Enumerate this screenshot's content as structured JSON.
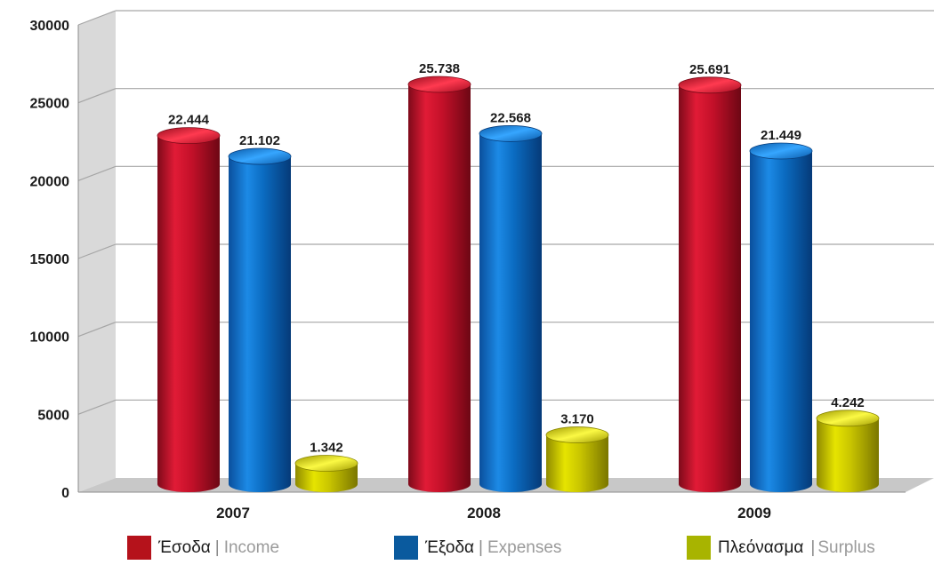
{
  "chart_data": {
    "type": "bar",
    "style": "3d-cylinder",
    "categories": [
      "2007",
      "2008",
      "2009"
    ],
    "series": [
      {
        "name": "Έσοδα | Income",
        "name_greek": "Έσοδα",
        "name_english": "Income",
        "color": "#c0102a",
        "values": [
          22444,
          25738,
          25691
        ],
        "labels": [
          "22.444",
          "25.738",
          "25.691"
        ]
      },
      {
        "name": "Έξοδα | Expenses",
        "name_greek": "Έξοδα",
        "name_english": "Expenses",
        "color": "#0a6cc0",
        "values": [
          21102,
          22568,
          21449
        ],
        "labels": [
          "21.102",
          "22.568",
          "21.449"
        ]
      },
      {
        "name": "Πλεόνασμα | Surplus",
        "name_greek": "Πλεόνασμα",
        "name_english": "Surplus",
        "color": "#c8c400",
        "values": [
          1342,
          3170,
          4242
        ],
        "labels": [
          "1.342",
          "3.170",
          "4.242"
        ]
      }
    ],
    "yticks": [
      "0",
      "5000",
      "10000",
      "15000",
      "20000",
      "25000",
      "30000"
    ],
    "ylim": [
      0,
      30000
    ],
    "grid": true,
    "legend_position": "bottom",
    "title": "",
    "xlabel": "",
    "ylabel": ""
  },
  "legend": [
    {
      "greek": "Έσοδα",
      "sep": "|",
      "english": "Income",
      "color": "#b5121b"
    },
    {
      "greek": "Έξοδα",
      "sep": "|",
      "english": "Expenses",
      "color": "#0a5a9e"
    },
    {
      "greek": "Πλεόνασμα",
      "sep": "|",
      "english": "Surplus",
      "color": "#a8b400"
    }
  ]
}
